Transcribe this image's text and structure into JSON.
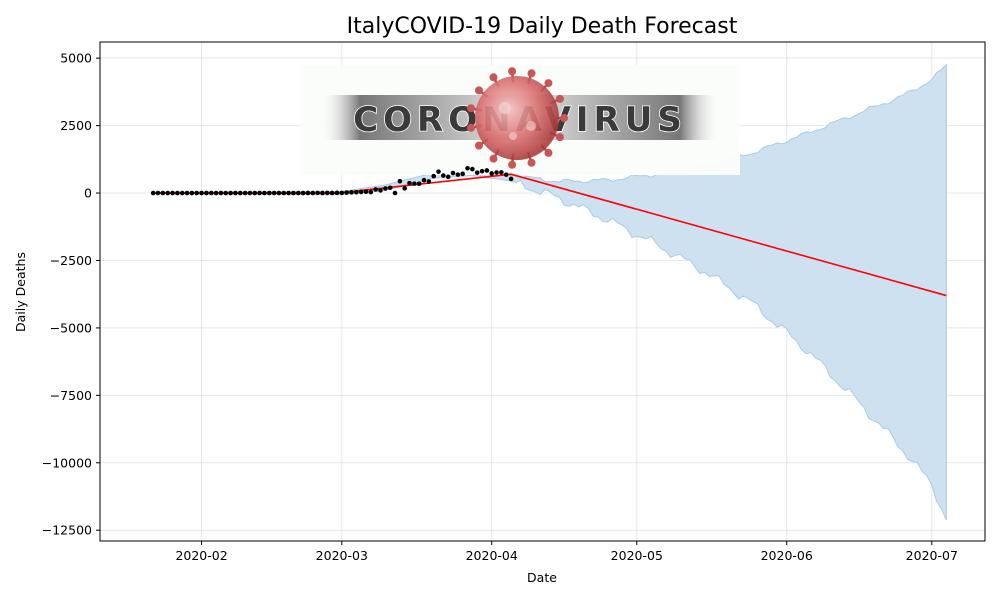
{
  "chart_data": {
    "type": "line",
    "title": "ItalyCOVID-19 Daily Death Forecast",
    "xlabel": "Date",
    "ylabel": "Daily Deaths",
    "xlim": [
      "2020-01-11",
      "2020-07-12"
    ],
    "ylim": [
      -12900,
      5600
    ],
    "grid": true,
    "x_ticks": [
      "2020-02-01",
      "2020-03-01",
      "2020-04-01",
      "2020-05-01",
      "2020-06-01",
      "2020-07-01"
    ],
    "x_tick_labels": [
      "2020-02",
      "2020-03",
      "2020-04",
      "2020-05",
      "2020-06",
      "2020-07"
    ],
    "y_ticks": [
      5000,
      2500,
      0,
      -2500,
      -5000,
      -7500,
      -10000,
      -12500
    ],
    "y_tick_labels": [
      "5000",
      "2500",
      "0",
      "−2500",
      "−5000",
      "−7500",
      "−10000",
      "−12500"
    ],
    "colors": {
      "forecast": "#ff0000",
      "observed": "#000000",
      "interval": "#cde1f0",
      "interval_edge": "#a9cbe6"
    },
    "observed": {
      "dates": [
        "2020-01-22",
        "2020-01-23",
        "2020-01-24",
        "2020-01-25",
        "2020-01-26",
        "2020-01-27",
        "2020-01-28",
        "2020-01-29",
        "2020-01-30",
        "2020-01-31",
        "2020-02-01",
        "2020-02-02",
        "2020-02-03",
        "2020-02-04",
        "2020-02-05",
        "2020-02-06",
        "2020-02-07",
        "2020-02-08",
        "2020-02-09",
        "2020-02-10",
        "2020-02-11",
        "2020-02-12",
        "2020-02-13",
        "2020-02-14",
        "2020-02-15",
        "2020-02-16",
        "2020-02-17",
        "2020-02-18",
        "2020-02-19",
        "2020-02-20",
        "2020-02-21",
        "2020-02-22",
        "2020-02-23",
        "2020-02-24",
        "2020-02-25",
        "2020-02-26",
        "2020-02-27",
        "2020-02-28",
        "2020-02-29",
        "2020-03-01",
        "2020-03-02",
        "2020-03-03",
        "2020-03-04",
        "2020-03-05",
        "2020-03-06",
        "2020-03-07",
        "2020-03-08",
        "2020-03-09",
        "2020-03-10",
        "2020-03-11",
        "2020-03-12",
        "2020-03-13",
        "2020-03-14",
        "2020-03-15",
        "2020-03-16",
        "2020-03-17",
        "2020-03-18",
        "2020-03-19",
        "2020-03-20",
        "2020-03-21",
        "2020-03-22",
        "2020-03-23",
        "2020-03-24",
        "2020-03-25",
        "2020-03-26",
        "2020-03-27",
        "2020-03-28",
        "2020-03-29",
        "2020-03-30",
        "2020-03-31",
        "2020-04-01",
        "2020-04-02",
        "2020-04-03",
        "2020-04-04",
        "2020-04-05"
      ],
      "values": [
        0,
        0,
        0,
        0,
        0,
        0,
        0,
        0,
        0,
        0,
        0,
        0,
        0,
        0,
        0,
        0,
        0,
        0,
        0,
        0,
        0,
        0,
        0,
        0,
        0,
        0,
        0,
        0,
        0,
        0,
        1,
        1,
        3,
        2,
        5,
        4,
        5,
        4,
        8,
        5,
        18,
        27,
        28,
        41,
        49,
        36,
        133,
        97,
        168,
        196,
        0,
        439,
        175,
        368,
        349,
        345,
        475,
        427,
        627,
        793,
        651,
        601,
        743,
        683,
        712,
        919,
        889,
        756,
        812,
        837,
        727,
        760,
        766,
        681,
        525
      ]
    },
    "forecast": {
      "dates": [
        "2020-01-22",
        "2020-02-29",
        "2020-04-05",
        "2020-07-04"
      ],
      "values": [
        0,
        0,
        700,
        -3800
      ]
    },
    "interval": {
      "dates": [
        "2020-01-22",
        "2020-03-01",
        "2020-03-10",
        "2020-03-20",
        "2020-03-28",
        "2020-04-05",
        "2020-04-15",
        "2020-04-25",
        "2020-05-05",
        "2020-05-15",
        "2020-05-25",
        "2020-06-05",
        "2020-06-15",
        "2020-06-25",
        "2020-07-01",
        "2020-07-04"
      ],
      "upper": [
        30,
        60,
        300,
        750,
        950,
        650,
        430,
        480,
        700,
        1000,
        1500,
        2200,
        2900,
        3600,
        4200,
        4750
      ],
      "lower": [
        -30,
        -60,
        100,
        550,
        650,
        450,
        -200,
        -1000,
        -1900,
        -2900,
        -4100,
        -5800,
        -7600,
        -9500,
        -10800,
        -12100
      ]
    },
    "overlay_image": {
      "text": "CORONAVIRUS",
      "icon": "virus-icon"
    }
  }
}
